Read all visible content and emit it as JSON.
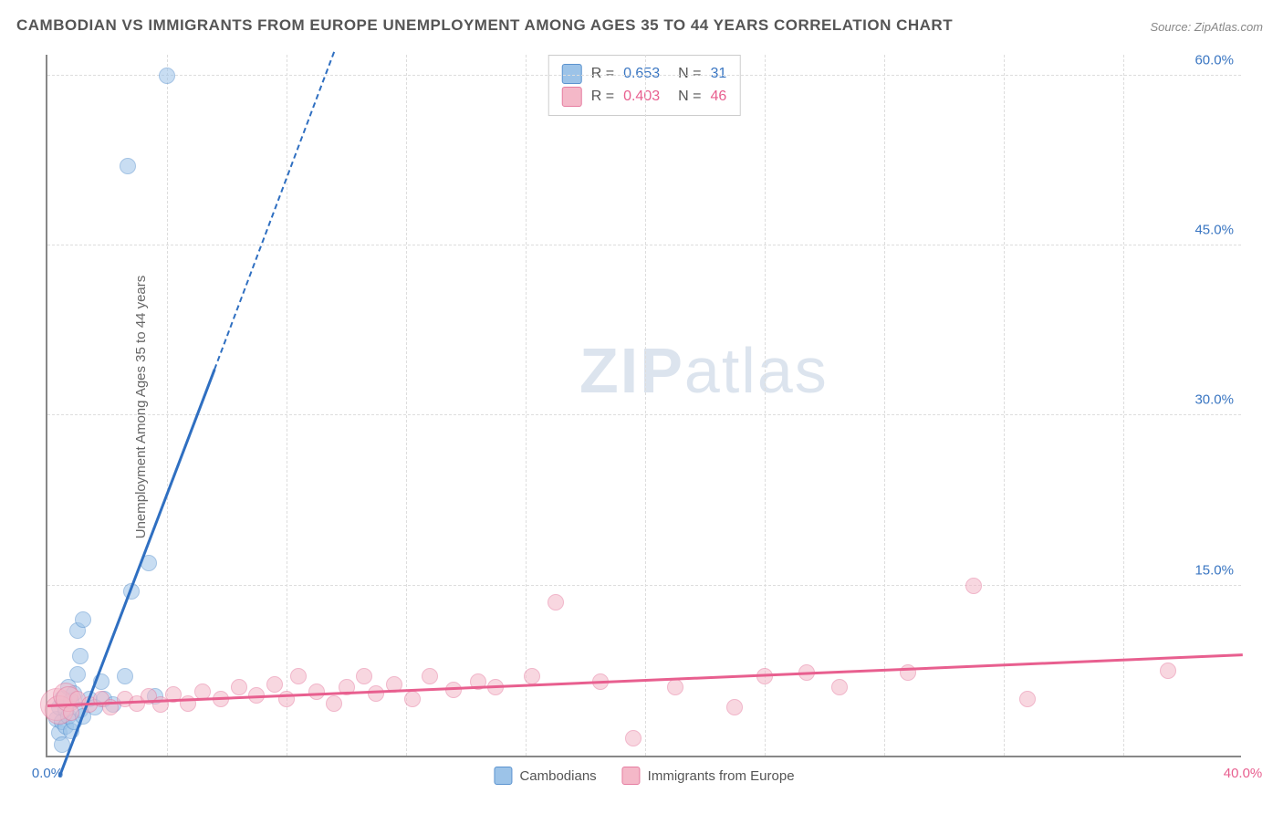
{
  "title": "CAMBODIAN VS IMMIGRANTS FROM EUROPE UNEMPLOYMENT AMONG AGES 35 TO 44 YEARS CORRELATION CHART",
  "source_label": "Source: ZipAtlas.com",
  "ylabel": "Unemployment Among Ages 35 to 44 years",
  "watermark": {
    "bold": "ZIP",
    "rest": "atlas"
  },
  "chart": {
    "type": "scatter",
    "background_color": "#ffffff",
    "grid_color": "#dddddd",
    "axis_color": "#888888",
    "xlim": [
      0,
      40
    ],
    "ylim": [
      0,
      62
    ],
    "x_ticks": [
      0,
      40
    ],
    "x_tick_labels": [
      "0.0%",
      "40.0%"
    ],
    "x_minor_ticks": [
      4,
      8,
      12,
      16,
      20,
      24,
      28,
      32,
      36
    ],
    "y_ticks": [
      15,
      30,
      45,
      60
    ],
    "y_tick_labels": [
      "15.0%",
      "30.0%",
      "45.0%",
      "60.0%"
    ],
    "point_radius": 9,
    "point_opacity": 0.55,
    "series": [
      {
        "key": "cambodians",
        "label": "Cambodians",
        "fill": "#9cc3e8",
        "stroke": "#5b93cf",
        "tick_color": "#3a76c2",
        "trend_color": "#2f6fc1",
        "R": "0.653",
        "N": "31",
        "trend": {
          "x1": 0.4,
          "y1": -2.0,
          "x2_solid": 5.6,
          "y2_solid": 34.0,
          "x2_dash": 9.6,
          "y2_dash": 62.0
        },
        "points": [
          {
            "x": 0.3,
            "y": 3.2
          },
          {
            "x": 0.4,
            "y": 2.0
          },
          {
            "x": 0.4,
            "y": 4.3
          },
          {
            "x": 0.5,
            "y": 3.0
          },
          {
            "x": 0.5,
            "y": 5.0
          },
          {
            "x": 0.6,
            "y": 2.6
          },
          {
            "x": 0.6,
            "y": 4.0
          },
          {
            "x": 0.7,
            "y": 3.5
          },
          {
            "x": 0.7,
            "y": 6.0
          },
          {
            "x": 0.8,
            "y": 2.2
          },
          {
            "x": 0.8,
            "y": 4.8
          },
          {
            "x": 0.9,
            "y": 3.0
          },
          {
            "x": 0.9,
            "y": 5.5
          },
          {
            "x": 1.0,
            "y": 7.2
          },
          {
            "x": 1.0,
            "y": 11.0
          },
          {
            "x": 1.1,
            "y": 4.0
          },
          {
            "x": 1.1,
            "y": 8.8
          },
          {
            "x": 1.2,
            "y": 3.5
          },
          {
            "x": 1.2,
            "y": 12.0
          },
          {
            "x": 1.4,
            "y": 5.0
          },
          {
            "x": 1.6,
            "y": 4.3
          },
          {
            "x": 1.8,
            "y": 6.5
          },
          {
            "x": 1.9,
            "y": 5.0
          },
          {
            "x": 2.2,
            "y": 4.5
          },
          {
            "x": 2.6,
            "y": 7.0
          },
          {
            "x": 2.8,
            "y": 14.5
          },
          {
            "x": 3.4,
            "y": 17.0
          },
          {
            "x": 3.6,
            "y": 5.2
          },
          {
            "x": 2.7,
            "y": 52.0
          },
          {
            "x": 4.0,
            "y": 60.0
          },
          {
            "x": 0.5,
            "y": 1.0
          }
        ]
      },
      {
        "key": "europe",
        "label": "Immigrants from Europe",
        "fill": "#f4b8c8",
        "stroke": "#e67ca0",
        "tick_color": "#e85f8f",
        "trend_color": "#e85f8f",
        "R": "0.403",
        "N": "46",
        "trend": {
          "x1": 0.0,
          "y1": 4.3,
          "x2_solid": 40.0,
          "y2_solid": 8.8,
          "x2_dash": 40.0,
          "y2_dash": 8.8
        },
        "points": [
          {
            "x": 0.3,
            "y": 4.5,
            "r": 18
          },
          {
            "x": 0.4,
            "y": 4.0,
            "r": 16
          },
          {
            "x": 0.6,
            "y": 5.3,
            "r": 14
          },
          {
            "x": 0.7,
            "y": 5.0,
            "r": 14
          },
          {
            "x": 0.8,
            "y": 3.8
          },
          {
            "x": 1.0,
            "y": 5.0
          },
          {
            "x": 1.4,
            "y": 4.5
          },
          {
            "x": 1.8,
            "y": 5.0
          },
          {
            "x": 2.1,
            "y": 4.3
          },
          {
            "x": 2.6,
            "y": 5.0
          },
          {
            "x": 3.0,
            "y": 4.6
          },
          {
            "x": 3.4,
            "y": 5.2
          },
          {
            "x": 3.8,
            "y": 4.5
          },
          {
            "x": 4.2,
            "y": 5.4
          },
          {
            "x": 4.7,
            "y": 4.6
          },
          {
            "x": 5.2,
            "y": 5.6
          },
          {
            "x": 5.8,
            "y": 5.0
          },
          {
            "x": 6.4,
            "y": 6.0
          },
          {
            "x": 7.0,
            "y": 5.3
          },
          {
            "x": 7.6,
            "y": 6.3
          },
          {
            "x": 8.0,
            "y": 5.0
          },
          {
            "x": 8.4,
            "y": 7.0
          },
          {
            "x": 9.0,
            "y": 5.6
          },
          {
            "x": 9.6,
            "y": 4.6
          },
          {
            "x": 10.0,
            "y": 6.0
          },
          {
            "x": 10.6,
            "y": 7.0
          },
          {
            "x": 11.0,
            "y": 5.5
          },
          {
            "x": 11.6,
            "y": 6.3
          },
          {
            "x": 12.2,
            "y": 5.0
          },
          {
            "x": 12.8,
            "y": 7.0
          },
          {
            "x": 13.6,
            "y": 5.8
          },
          {
            "x": 14.4,
            "y": 6.5
          },
          {
            "x": 15.0,
            "y": 6.0
          },
          {
            "x": 16.2,
            "y": 7.0
          },
          {
            "x": 17.0,
            "y": 13.5
          },
          {
            "x": 18.5,
            "y": 6.5
          },
          {
            "x": 19.6,
            "y": 1.5
          },
          {
            "x": 21.0,
            "y": 6.0
          },
          {
            "x": 23.0,
            "y": 4.3
          },
          {
            "x": 24.0,
            "y": 7.0
          },
          {
            "x": 25.4,
            "y": 7.3
          },
          {
            "x": 26.5,
            "y": 6.0
          },
          {
            "x": 28.8,
            "y": 7.3
          },
          {
            "x": 31.0,
            "y": 15.0
          },
          {
            "x": 32.8,
            "y": 5.0
          },
          {
            "x": 37.5,
            "y": 7.5
          }
        ]
      }
    ]
  }
}
